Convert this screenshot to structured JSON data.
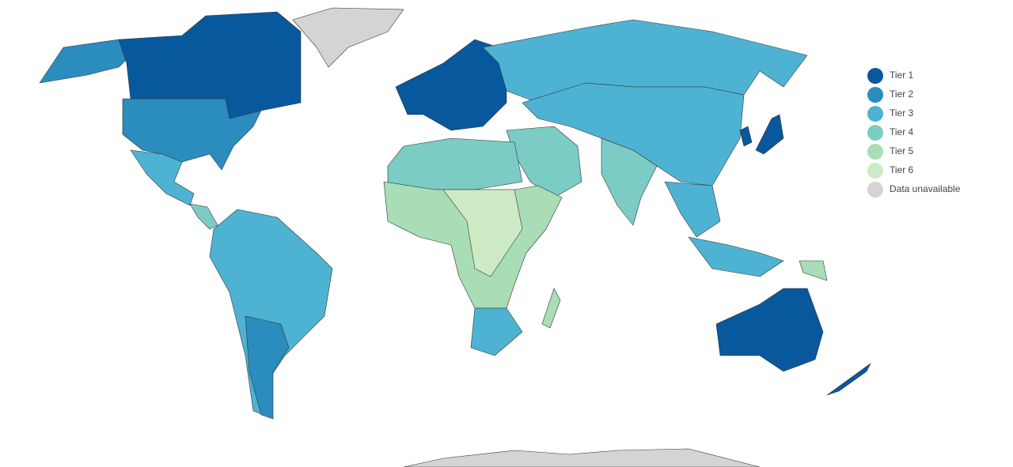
{
  "legend": {
    "items": [
      {
        "label": "Tier 1",
        "color": "#08589e"
      },
      {
        "label": "Tier 2",
        "color": "#2b8cbe"
      },
      {
        "label": "Tier 3",
        "color": "#4eb3d3"
      },
      {
        "label": "Tier 4",
        "color": "#7bccc4"
      },
      {
        "label": "Tier 5",
        "color": "#a8ddb5"
      },
      {
        "label": "Tier 6",
        "color": "#ccebc5"
      },
      {
        "label": "Data unavailable",
        "color": "#d4d4d4"
      }
    ]
  }
}
